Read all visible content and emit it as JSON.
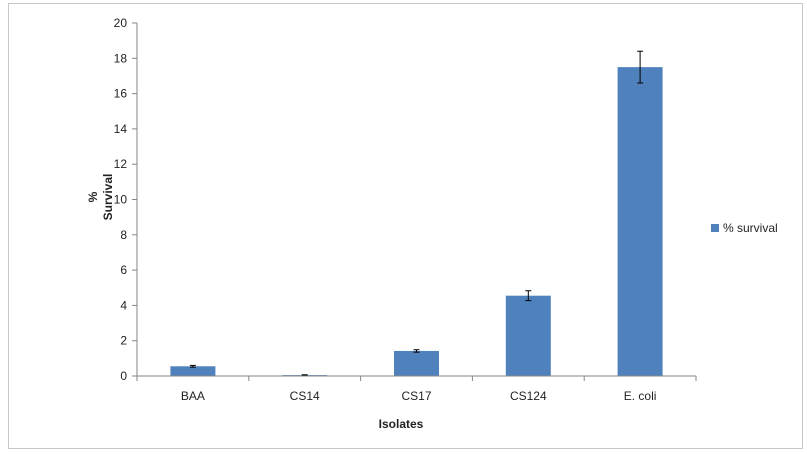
{
  "chart_data": {
    "type": "bar",
    "categories": [
      "BAA",
      "CS14",
      "CS17",
      "CS124",
      "E. coli"
    ],
    "series": [
      {
        "name": "% survival",
        "values": [
          0.55,
          0.05,
          1.42,
          4.55,
          17.5
        ],
        "errors": [
          0.05,
          0.02,
          0.07,
          0.28,
          0.9
        ],
        "color": "#4f81bd"
      }
    ],
    "xlabel": "Isolates",
    "ylabel_lines": [
      "%",
      "Survival"
    ],
    "ylim": [
      0,
      20
    ],
    "yticks": [
      "0",
      "2",
      "4",
      "6",
      "8",
      "10",
      "12",
      "14",
      "16",
      "18",
      "20"
    ],
    "grid": false,
    "legend_position": "right"
  }
}
